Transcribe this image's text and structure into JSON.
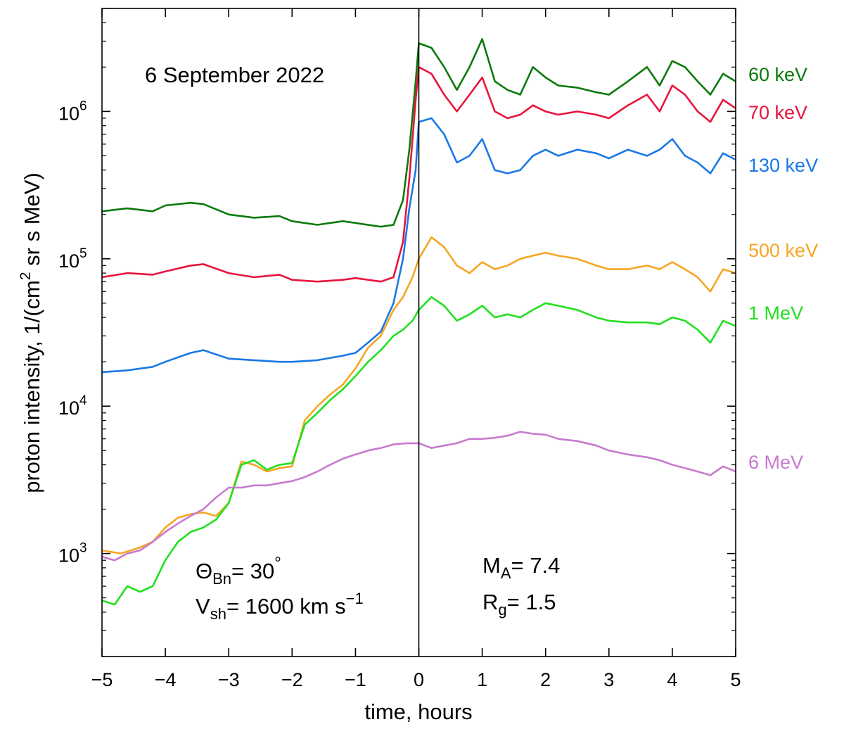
{
  "chart_data": {
    "type": "line",
    "title": "6 September 2022",
    "xlabel": "time, hours",
    "ylabel": "proton intensity, 1/(cm² sr s MeV)",
    "xlim": [
      -5,
      5
    ],
    "ylim": [
      200,
      5000000
    ],
    "yscale": "log",
    "grid": false,
    "legend": "right side, labels next to curves",
    "xticks": [
      "−5",
      "−4",
      "−3",
      "−2",
      "−1",
      "0",
      "1",
      "2",
      "3",
      "4",
      "5"
    ],
    "yticks": [
      {
        "value": 1000,
        "base": "10",
        "exp": "3"
      },
      {
        "value": 10000,
        "base": "10",
        "exp": "4"
      },
      {
        "value": 100000,
        "base": "10",
        "exp": "5"
      },
      {
        "value": 1000000,
        "base": "10",
        "exp": "6"
      }
    ],
    "vertical_line_x": 0,
    "annotations": {
      "theta_sym": "Θ",
      "theta_sub": "Bn",
      "theta_val": "= 30",
      "theta_deg": "°",
      "v_sym": "V",
      "v_sub": "sh",
      "v_val": "= 1600 km s",
      "v_exp": "−1",
      "ma_sym": "M",
      "ma_sub": "A",
      "ma_val": "= 7.4",
      "rg_sym": "R",
      "rg_sub": "g",
      "rg_val": "= 1.5"
    },
    "series": [
      {
        "name": "60 keV",
        "color": "#0b7a0b",
        "points": [
          [
            -5,
            210000
          ],
          [
            -4.6,
            220000
          ],
          [
            -4.2,
            210000
          ],
          [
            -4,
            230000
          ],
          [
            -3.6,
            240000
          ],
          [
            -3.4,
            235000
          ],
          [
            -3,
            200000
          ],
          [
            -2.6,
            190000
          ],
          [
            -2.2,
            195000
          ],
          [
            -2,
            180000
          ],
          [
            -1.6,
            170000
          ],
          [
            -1.2,
            180000
          ],
          [
            -1,
            175000
          ],
          [
            -0.6,
            165000
          ],
          [
            -0.4,
            170000
          ],
          [
            -0.25,
            250000
          ],
          [
            -0.15,
            550000
          ],
          [
            -0.05,
            1600000
          ],
          [
            0,
            2900000
          ],
          [
            0.2,
            2700000
          ],
          [
            0.4,
            2000000
          ],
          [
            0.6,
            1400000
          ],
          [
            0.8,
            2000000
          ],
          [
            1,
            3100000
          ],
          [
            1.2,
            1600000
          ],
          [
            1.4,
            1400000
          ],
          [
            1.6,
            1300000
          ],
          [
            1.8,
            2000000
          ],
          [
            2,
            1700000
          ],
          [
            2.2,
            1500000
          ],
          [
            2.5,
            1450000
          ],
          [
            2.8,
            1350000
          ],
          [
            3,
            1300000
          ],
          [
            3.3,
            1600000
          ],
          [
            3.6,
            2000000
          ],
          [
            3.8,
            1500000
          ],
          [
            4,
            2200000
          ],
          [
            4.2,
            2000000
          ],
          [
            4.4,
            1600000
          ],
          [
            4.6,
            1300000
          ],
          [
            4.8,
            1800000
          ],
          [
            5,
            1600000
          ]
        ]
      },
      {
        "name": "70 keV",
        "color": "#e8143c",
        "points": [
          [
            -5,
            75000
          ],
          [
            -4.6,
            80000
          ],
          [
            -4.2,
            78000
          ],
          [
            -4,
            82000
          ],
          [
            -3.6,
            90000
          ],
          [
            -3.4,
            92000
          ],
          [
            -3,
            80000
          ],
          [
            -2.6,
            75000
          ],
          [
            -2.2,
            78000
          ],
          [
            -2,
            72000
          ],
          [
            -1.6,
            70000
          ],
          [
            -1.2,
            72000
          ],
          [
            -1,
            74000
          ],
          [
            -0.6,
            70000
          ],
          [
            -0.4,
            75000
          ],
          [
            -0.25,
            130000
          ],
          [
            -0.15,
            350000
          ],
          [
            -0.05,
            1200000
          ],
          [
            0,
            2000000
          ],
          [
            0.2,
            1800000
          ],
          [
            0.4,
            1300000
          ],
          [
            0.6,
            1000000
          ],
          [
            0.8,
            1300000
          ],
          [
            1,
            1700000
          ],
          [
            1.2,
            1000000
          ],
          [
            1.4,
            900000
          ],
          [
            1.6,
            950000
          ],
          [
            1.8,
            1100000
          ],
          [
            2,
            1000000
          ],
          [
            2.2,
            950000
          ],
          [
            2.5,
            1000000
          ],
          [
            2.8,
            950000
          ],
          [
            3,
            900000
          ],
          [
            3.3,
            1100000
          ],
          [
            3.6,
            1300000
          ],
          [
            3.8,
            1000000
          ],
          [
            4,
            1500000
          ],
          [
            4.2,
            1300000
          ],
          [
            4.4,
            1000000
          ],
          [
            4.6,
            850000
          ],
          [
            4.8,
            1200000
          ],
          [
            5,
            1050000
          ]
        ]
      },
      {
        "name": "130 keV",
        "color": "#1a78e6",
        "points": [
          [
            -5,
            17000
          ],
          [
            -4.6,
            17500
          ],
          [
            -4.2,
            18500
          ],
          [
            -4,
            20000
          ],
          [
            -3.6,
            23000
          ],
          [
            -3.4,
            24000
          ],
          [
            -3,
            21000
          ],
          [
            -2.6,
            20500
          ],
          [
            -2.2,
            20000
          ],
          [
            -2,
            20000
          ],
          [
            -1.6,
            20500
          ],
          [
            -1.2,
            22000
          ],
          [
            -1,
            23000
          ],
          [
            -0.8,
            27000
          ],
          [
            -0.6,
            32000
          ],
          [
            -0.4,
            50000
          ],
          [
            -0.25,
            100000
          ],
          [
            -0.15,
            220000
          ],
          [
            -0.05,
            400000
          ],
          [
            0,
            850000
          ],
          [
            0.2,
            900000
          ],
          [
            0.4,
            700000
          ],
          [
            0.6,
            450000
          ],
          [
            0.8,
            500000
          ],
          [
            1,
            650000
          ],
          [
            1.2,
            400000
          ],
          [
            1.4,
            380000
          ],
          [
            1.6,
            400000
          ],
          [
            1.8,
            500000
          ],
          [
            2,
            550000
          ],
          [
            2.2,
            500000
          ],
          [
            2.5,
            550000
          ],
          [
            2.8,
            520000
          ],
          [
            3,
            480000
          ],
          [
            3.3,
            550000
          ],
          [
            3.6,
            500000
          ],
          [
            3.8,
            550000
          ],
          [
            4,
            650000
          ],
          [
            4.2,
            500000
          ],
          [
            4.4,
            450000
          ],
          [
            4.6,
            380000
          ],
          [
            4.8,
            520000
          ],
          [
            5,
            470000
          ]
        ]
      },
      {
        "name": "500 keV",
        "color": "#f6a623",
        "points": [
          [
            -5,
            1050
          ],
          [
            -4.7,
            1000
          ],
          [
            -4.4,
            1100
          ],
          [
            -4.2,
            1200
          ],
          [
            -4,
            1500
          ],
          [
            -3.8,
            1750
          ],
          [
            -3.6,
            1850
          ],
          [
            -3.4,
            1900
          ],
          [
            -3.2,
            1800
          ],
          [
            -3,
            2200
          ],
          [
            -2.8,
            4200
          ],
          [
            -2.6,
            4000
          ],
          [
            -2.4,
            3600
          ],
          [
            -2.2,
            3800
          ],
          [
            -2,
            3900
          ],
          [
            -1.8,
            8000
          ],
          [
            -1.6,
            10000
          ],
          [
            -1.4,
            12000
          ],
          [
            -1.2,
            14000
          ],
          [
            -1,
            18000
          ],
          [
            -0.8,
            25000
          ],
          [
            -0.6,
            30000
          ],
          [
            -0.4,
            45000
          ],
          [
            -0.25,
            55000
          ],
          [
            -0.1,
            75000
          ],
          [
            0,
            100000
          ],
          [
            0.2,
            140000
          ],
          [
            0.4,
            120000
          ],
          [
            0.6,
            90000
          ],
          [
            0.8,
            80000
          ],
          [
            1,
            95000
          ],
          [
            1.2,
            85000
          ],
          [
            1.4,
            90000
          ],
          [
            1.6,
            100000
          ],
          [
            1.8,
            105000
          ],
          [
            2,
            110000
          ],
          [
            2.2,
            105000
          ],
          [
            2.5,
            100000
          ],
          [
            2.8,
            90000
          ],
          [
            3,
            85000
          ],
          [
            3.3,
            85000
          ],
          [
            3.6,
            90000
          ],
          [
            3.8,
            85000
          ],
          [
            4,
            95000
          ],
          [
            4.2,
            85000
          ],
          [
            4.4,
            75000
          ],
          [
            4.6,
            60000
          ],
          [
            4.8,
            85000
          ],
          [
            5,
            80000
          ]
        ]
      },
      {
        "name": "1 MeV",
        "color": "#22e01e",
        "points": [
          [
            -5,
            480
          ],
          [
            -4.8,
            450
          ],
          [
            -4.6,
            600
          ],
          [
            -4.4,
            550
          ],
          [
            -4.2,
            600
          ],
          [
            -4,
            900
          ],
          [
            -3.8,
            1200
          ],
          [
            -3.6,
            1400
          ],
          [
            -3.4,
            1500
          ],
          [
            -3.2,
            1700
          ],
          [
            -3,
            2200
          ],
          [
            -2.8,
            4000
          ],
          [
            -2.6,
            4300
          ],
          [
            -2.4,
            3700
          ],
          [
            -2.2,
            4000
          ],
          [
            -2,
            4100
          ],
          [
            -1.8,
            7500
          ],
          [
            -1.6,
            9000
          ],
          [
            -1.4,
            11000
          ],
          [
            -1.2,
            13000
          ],
          [
            -1,
            16000
          ],
          [
            -0.8,
            20000
          ],
          [
            -0.6,
            24000
          ],
          [
            -0.4,
            30000
          ],
          [
            -0.25,
            33000
          ],
          [
            -0.1,
            38000
          ],
          [
            0,
            45000
          ],
          [
            0.2,
            55000
          ],
          [
            0.4,
            48000
          ],
          [
            0.6,
            38000
          ],
          [
            0.8,
            42000
          ],
          [
            1,
            48000
          ],
          [
            1.2,
            40000
          ],
          [
            1.4,
            42000
          ],
          [
            1.6,
            40000
          ],
          [
            1.8,
            45000
          ],
          [
            2,
            50000
          ],
          [
            2.2,
            48000
          ],
          [
            2.5,
            45000
          ],
          [
            2.8,
            40000
          ],
          [
            3,
            38000
          ],
          [
            3.3,
            37000
          ],
          [
            3.6,
            37000
          ],
          [
            3.8,
            36000
          ],
          [
            4,
            40000
          ],
          [
            4.2,
            38000
          ],
          [
            4.4,
            33000
          ],
          [
            4.6,
            27000
          ],
          [
            4.8,
            38000
          ],
          [
            5,
            35000
          ]
        ]
      },
      {
        "name": "6 MeV",
        "color": "#c87ad0",
        "points": [
          [
            -5,
            950
          ],
          [
            -4.8,
            900
          ],
          [
            -4.6,
            1000
          ],
          [
            -4.4,
            1050
          ],
          [
            -4.2,
            1200
          ],
          [
            -4,
            1400
          ],
          [
            -3.8,
            1600
          ],
          [
            -3.6,
            1800
          ],
          [
            -3.4,
            2000
          ],
          [
            -3.2,
            2400
          ],
          [
            -3,
            2800
          ],
          [
            -2.8,
            2800
          ],
          [
            -2.6,
            2900
          ],
          [
            -2.4,
            2900
          ],
          [
            -2.2,
            3000
          ],
          [
            -2,
            3100
          ],
          [
            -1.8,
            3300
          ],
          [
            -1.6,
            3600
          ],
          [
            -1.4,
            4000
          ],
          [
            -1.2,
            4400
          ],
          [
            -1,
            4700
          ],
          [
            -0.8,
            5000
          ],
          [
            -0.6,
            5200
          ],
          [
            -0.4,
            5500
          ],
          [
            -0.2,
            5600
          ],
          [
            0,
            5600
          ],
          [
            0.2,
            5200
          ],
          [
            0.4,
            5400
          ],
          [
            0.6,
            5600
          ],
          [
            0.8,
            6000
          ],
          [
            1,
            6000
          ],
          [
            1.2,
            6100
          ],
          [
            1.4,
            6300
          ],
          [
            1.6,
            6700
          ],
          [
            1.8,
            6500
          ],
          [
            2,
            6400
          ],
          [
            2.2,
            6000
          ],
          [
            2.5,
            5800
          ],
          [
            2.8,
            5400
          ],
          [
            3,
            5000
          ],
          [
            3.3,
            4700
          ],
          [
            3.6,
            4500
          ],
          [
            3.8,
            4300
          ],
          [
            4,
            4000
          ],
          [
            4.2,
            3800
          ],
          [
            4.4,
            3600
          ],
          [
            4.6,
            3400
          ],
          [
            4.8,
            3900
          ],
          [
            5,
            3600
          ]
        ]
      }
    ]
  }
}
